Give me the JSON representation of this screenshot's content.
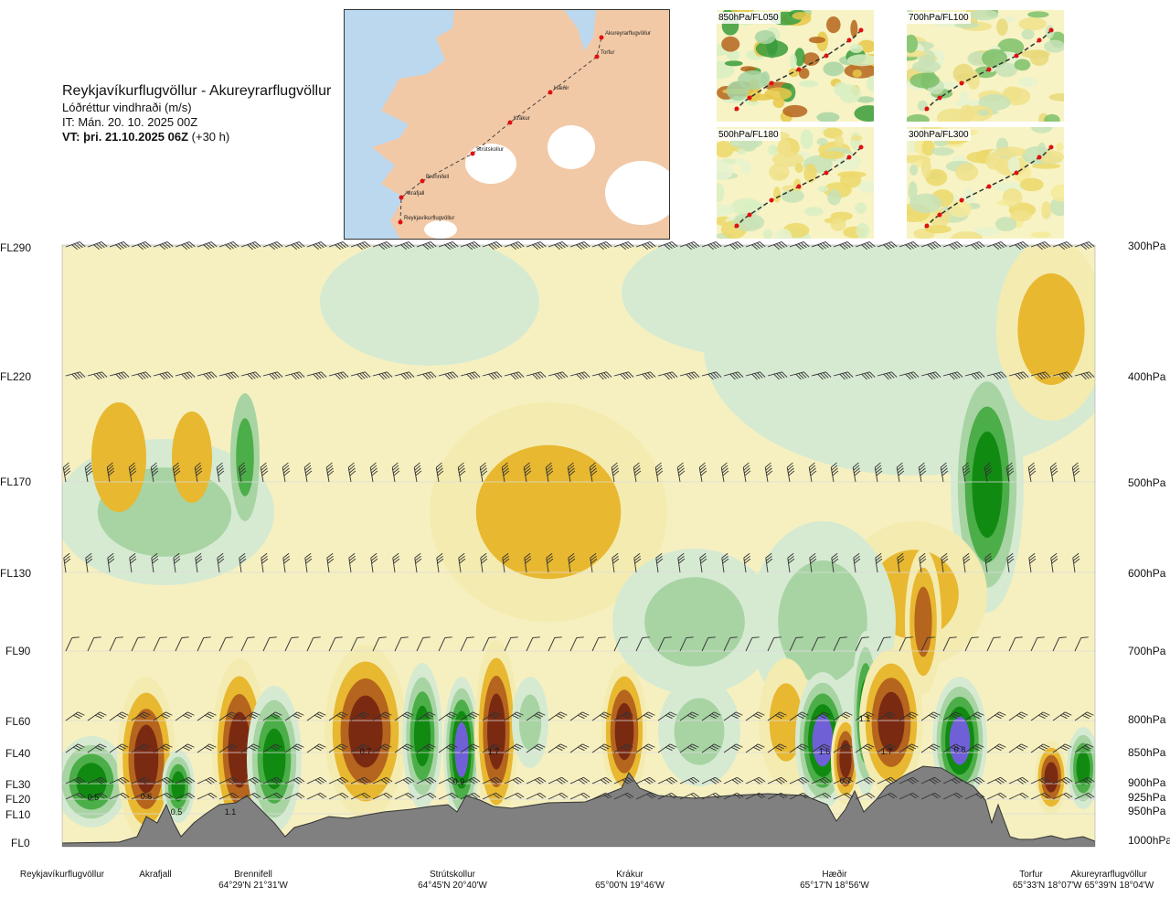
{
  "header": {
    "route": "Reykjavíkurflugvöllur - Akureyrarflugvöllur",
    "parameter": "Lóðréttur vindhraði (m/s)",
    "issue_time": "IT: Mán. 20. 10. 2025 00Z",
    "valid_time_bold": "VT: þri. 21.10.2025 06Z",
    "valid_time_offset": "(+30 h)"
  },
  "route_map": {
    "points": [
      "Akureyrarflugvöllur",
      "Torfur",
      "Hæðir",
      "Krákur",
      "Strútskollur",
      "Brennifell",
      "Akrafjall",
      "Reykjavíkurflugvöllur"
    ],
    "colors": {
      "land": "#f2c9a6",
      "sea": "#bcd8ef",
      "ice": "#ffffff",
      "route": "#444444",
      "point": "#e01010"
    }
  },
  "thumbnails": [
    {
      "label": "850hPa/FL050"
    },
    {
      "label": "700hPa/FL100"
    },
    {
      "label": "500hPa/FL180"
    },
    {
      "label": "300hPa/FL300"
    }
  ],
  "chart_data": {
    "type": "heatmap",
    "title": "Lóðréttur vindhraði (m/s)",
    "flight_levels": [
      "FL290",
      "FL220",
      "FL170",
      "FL130",
      "FL90",
      "FL60",
      "FL40",
      "FL30",
      "FL20",
      "FL10",
      "FL0"
    ],
    "pressure_levels": [
      "300hPa",
      "400hPa",
      "500hPa",
      "600hPa",
      "700hPa",
      "800hPa",
      "850hPa",
      "900hPa",
      "925hPa",
      "950hPa",
      "1000hPa"
    ],
    "waypoints": [
      {
        "name": "Reykjavíkurflugvöllur",
        "coord": ""
      },
      {
        "name": "Akrafjall",
        "coord": ""
      },
      {
        "name": "Brennifell",
        "coord": "64°29'N 21°31'W"
      },
      {
        "name": "Strútskollur",
        "coord": "64°45'N 20°40'W"
      },
      {
        "name": "Krákur",
        "coord": "65°00'N 19°46'W"
      },
      {
        "name": "Hæðir",
        "coord": "65°17'N 18°56'W"
      },
      {
        "name": "Torfur",
        "coord": "65°33'N 18°07'W"
      },
      {
        "name": "Akureyrarflugvöllur",
        "coord": "65°39'N 18°04'W"
      }
    ],
    "cell_labels": [
      "0.5",
      "0.6",
      "0.5",
      "1.1",
      "0.7",
      "0.9",
      "1.7",
      "1.6",
      "0.7",
      "1.1",
      "1.7",
      "0.8"
    ],
    "colors": {
      "down_strong": "#7b2a12",
      "down_mid": "#b5651d",
      "down_weak": "#e8b830",
      "down_faint": "#f4ebb0",
      "up_faint": "#d6ead2",
      "up_weak": "#a8d4a4",
      "up_mid": "#4cae48",
      "up_strong": "#118a12",
      "up_max": "#7060d8",
      "terrain": "#808080",
      "background": "#fafaee"
    }
  }
}
